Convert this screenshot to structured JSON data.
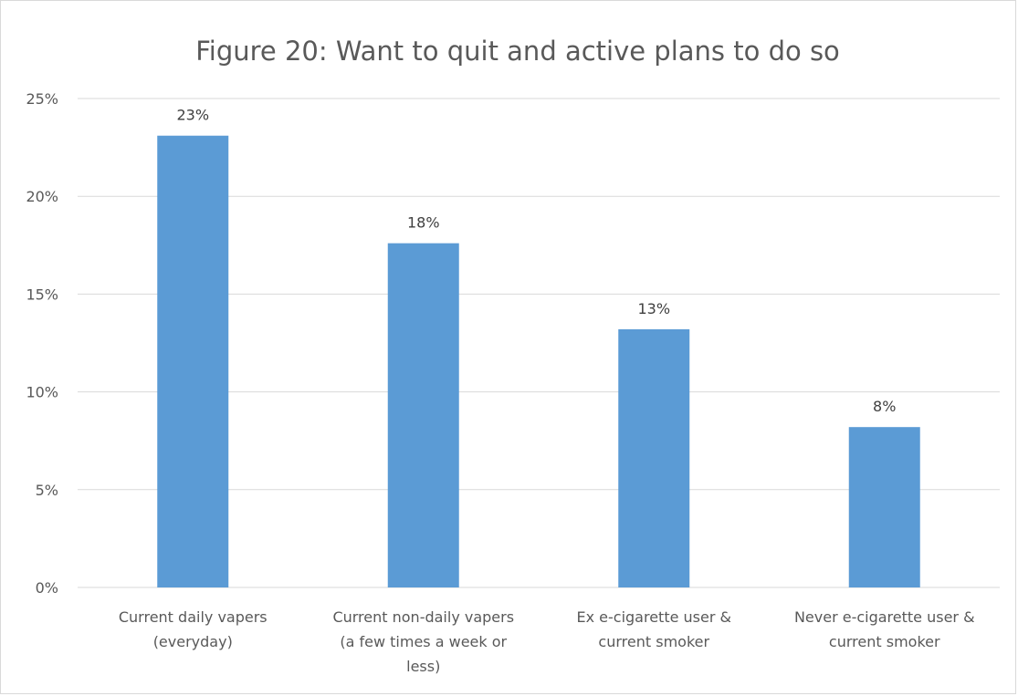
{
  "chart_data": {
    "type": "bar",
    "title": "Figure 20: Want to quit and active plans to do so",
    "xlabel": "",
    "ylabel": "",
    "categories": [
      [
        "Current daily vapers",
        "(everyday)"
      ],
      [
        "Current non-daily vapers",
        "(a few times a week or",
        "less)"
      ],
      [
        "Ex e-cigarette user &",
        "current smoker"
      ],
      [
        "Never e-cigarette user &",
        "current smoker"
      ]
    ],
    "values": [
      0.231,
      0.176,
      0.132,
      0.082
    ],
    "data_labels": [
      "23%",
      "18%",
      "13%",
      "8%"
    ],
    "ylim": [
      0,
      0.25
    ],
    "yticks": [
      0,
      0.05,
      0.1,
      0.15,
      0.2,
      0.25
    ],
    "ytick_labels": [
      "0%",
      "5%",
      "10%",
      "15%",
      "20%",
      "25%"
    ],
    "grid": true,
    "legend": false,
    "colors": {
      "bar": "#5b9bd5",
      "grid": "#d9d9d9",
      "axis_text": "#595959"
    }
  }
}
